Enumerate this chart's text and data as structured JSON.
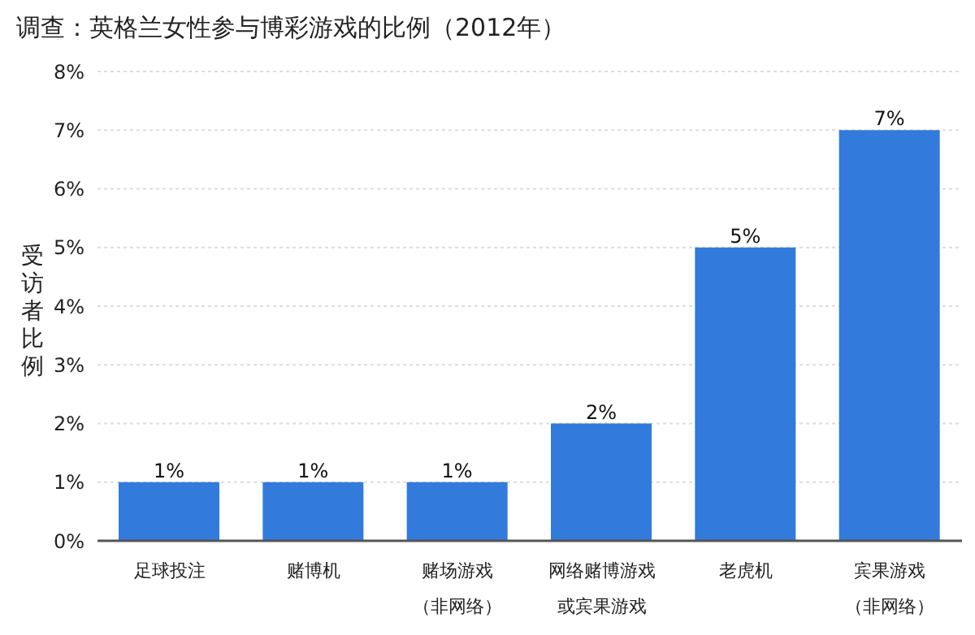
{
  "chart_data": {
    "type": "bar",
    "title": "调查：英格兰女性参与博彩游戏的比例（2012年）",
    "ylabel": "受访者比例",
    "categories": [
      "足球投注",
      "赌博机",
      "赌场游戏（非网络）",
      "网络赌博游戏或宾果游戏",
      "老虎机",
      "宾果游戏（非网络）"
    ],
    "values": [
      1,
      1,
      1,
      2,
      5,
      7
    ],
    "value_labels": [
      "1%",
      "1%",
      "1%",
      "2%",
      "5%",
      "7%"
    ],
    "color": "#327bdc",
    "ylim": [
      0,
      8
    ],
    "yticks": [
      {
        "value": 0,
        "label": "0%"
      },
      {
        "value": 1,
        "label": "1%"
      },
      {
        "value": 2,
        "label": "2%"
      },
      {
        "value": 3,
        "label": "3%"
      },
      {
        "value": 4,
        "label": "4%"
      },
      {
        "value": 5,
        "label": "5%"
      },
      {
        "value": 6,
        "label": "6%"
      },
      {
        "value": 7,
        "label": "7%"
      },
      {
        "value": 8,
        "label": "8%"
      }
    ],
    "grid": "y"
  }
}
